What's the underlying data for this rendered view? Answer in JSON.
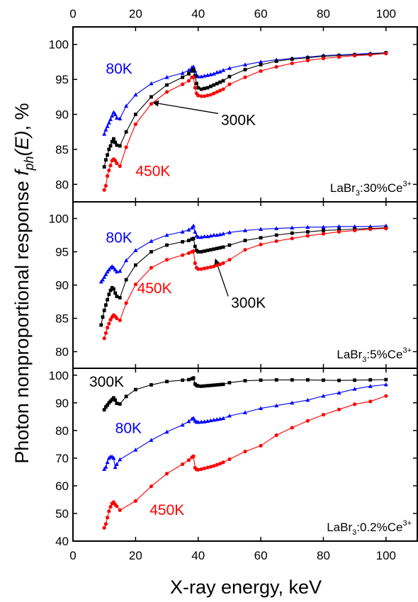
{
  "chart_data": {
    "type": "line",
    "xlabel": "X-ray energy, keV",
    "ylabel_parts": [
      "Photon nonproportional response ",
      "f",
      "ph",
      "(E)",
      ", %"
    ],
    "xlim": [
      0,
      110
    ],
    "x_ticks": [
      0,
      20,
      40,
      60,
      80,
      100
    ],
    "colors": {
      "80K": "#0000ff",
      "300K": "#000000",
      "450K": "#ff0000"
    },
    "panels": [
      {
        "id": "ce30",
        "sample_parts": [
          "LaBr",
          "3",
          ":30%Ce",
          "3+"
        ],
        "ylim": [
          77.5,
          102.5
        ],
        "y_ticks": [
          80,
          85,
          90,
          95,
          100
        ],
        "series": [
          {
            "name": "80K",
            "color": "#0000ff",
            "marker": "triangle",
            "label_anchor": [
              10.5,
              95.8
            ],
            "x": [
              10,
              10.5,
              11,
              11.5,
              12,
              12.5,
              13,
              13.5,
              14,
              15,
              17,
              20,
              25,
              30,
              35,
              37,
              38,
              38.5,
              39,
              39.5,
              40,
              41,
              42,
              43,
              44,
              45,
              46,
              47,
              48,
              50,
              55,
              60,
              65,
              70,
              75,
              80,
              85,
              90,
              95,
              100
            ],
            "y": [
              87.2,
              87.8,
              88.3,
              88.8,
              89.3,
              89.8,
              90.3,
              90,
              89.5,
              89.4,
              91.2,
              92.8,
              94.4,
              95.3,
              95.9,
              96.3,
              96.7,
              96.8,
              96.2,
              95.6,
              95.4,
              95.4,
              95.5,
              95.6,
              95.7,
              95.8,
              96,
              96.1,
              96.3,
              96.6,
              97.1,
              97.5,
              97.8,
              98,
              98.2,
              98.4,
              98.5,
              98.6,
              98.7,
              98.8
            ]
          },
          {
            "name": "300K",
            "color": "#000000",
            "marker": "square",
            "label_anchor": [
              47.3,
              88.5
            ],
            "arrow_to": [
              25.5,
              91.7
            ],
            "x": [
              10,
              10.5,
              11,
              11.5,
              12,
              12.5,
              13,
              13.5,
              14,
              15,
              17,
              20,
              25,
              30,
              35,
              37,
              38,
              38.5,
              39,
              39.5,
              40,
              41,
              42,
              43,
              44,
              45,
              46,
              47,
              48,
              50,
              55,
              60,
              65,
              70,
              75,
              80,
              85,
              90,
              95,
              100
            ],
            "y": [
              82.5,
              83.5,
              84.2,
              85,
              85.5,
              86.1,
              86.5,
              86,
              85.6,
              85.5,
              87.5,
              90,
              92.5,
              94.2,
              95.3,
              95.8,
              96.2,
              96.4,
              95.5,
              94.4,
              93.8,
              93.6,
              93.7,
              93.8,
              94,
              94.2,
              94.4,
              94.6,
              94.8,
              95.4,
              96.4,
              97.1,
              97.6,
              97.9,
              98.1,
              98.3,
              98.4,
              98.5,
              98.6,
              98.8
            ]
          },
          {
            "name": "450K",
            "color": "#ff0000",
            "marker": "circle",
            "label_anchor": [
              20,
              81.2
            ],
            "x": [
              10,
              10.5,
              11,
              11.5,
              12,
              12.5,
              13,
              13.5,
              14,
              15,
              17,
              20,
              25,
              30,
              35,
              37,
              38,
              38.5,
              39,
              39.5,
              40,
              41,
              42,
              43,
              44,
              45,
              46,
              47,
              48,
              50,
              55,
              60,
              65,
              70,
              75,
              80,
              85,
              90,
              95,
              100
            ],
            "y": [
              79.2,
              79.8,
              81.2,
              82,
              82.7,
              83.4,
              83.6,
              83.4,
              83,
              82.6,
              85.3,
              88.6,
              91.5,
              93.2,
              94.3,
              94.8,
              95.3,
              95.3,
              93.8,
              93,
              92.7,
              92.6,
              92.6,
              92.7,
              92.8,
              93,
              93.2,
              93.4,
              93.6,
              94.3,
              95.3,
              96.2,
              96.8,
              97.3,
              97.7,
              98,
              98.2,
              98.4,
              98.5,
              98.7
            ]
          }
        ]
      },
      {
        "id": "ce5",
        "sample_parts": [
          "LaBr",
          "3",
          ":5%Ce",
          "3+"
        ],
        "ylim": [
          77.5,
          102.5
        ],
        "y_ticks": [
          80,
          85,
          90,
          95,
          100
        ],
        "series": [
          {
            "name": "80K",
            "color": "#0000ff",
            "marker": "triangle",
            "label_anchor": [
              10.5,
              96.4
            ],
            "x": [
              9,
              9.5,
              10,
              10.5,
              11,
              11.5,
              12,
              12.5,
              13,
              13.5,
              14,
              15,
              17,
              20,
              25,
              30,
              35,
              37,
              38,
              38.5,
              39,
              39.5,
              40,
              41,
              42,
              43,
              44,
              45,
              46,
              47,
              48,
              50,
              55,
              60,
              65,
              70,
              75,
              80,
              85,
              90,
              95,
              100
            ],
            "y": [
              90.5,
              90.8,
              91.2,
              91.6,
              92,
              92.3,
              92.6,
              92.8,
              92.6,
              92.3,
              92,
              92.1,
              93.7,
              95.2,
              96.6,
              97.5,
              98,
              98.3,
              98.6,
              98.9,
              98,
              97.4,
              97.2,
              97.2,
              97.3,
              97.3,
              97.4,
              97.5,
              97.5,
              97.6,
              97.7,
              97.9,
              98.2,
              98.4,
              98.5,
              98.6,
              98.7,
              98.7,
              98.8,
              98.8,
              98.8,
              98.9
            ]
          },
          {
            "name": "300K",
            "color": "#000000",
            "marker": "square",
            "label_anchor": [
              50.5,
              86.6
            ],
            "arrow_to": [
              45.5,
              93.9
            ],
            "x": [
              9,
              9.5,
              10,
              10.5,
              11,
              11.5,
              12,
              12.5,
              13,
              13.5,
              14,
              15,
              17,
              20,
              25,
              30,
              35,
              37,
              38,
              38.5,
              39,
              39.5,
              40,
              41,
              42,
              43,
              44,
              45,
              46,
              47,
              48,
              50,
              55,
              60,
              65,
              70,
              75,
              80,
              85,
              90,
              95,
              100
            ],
            "y": [
              84,
              85.2,
              86.2,
              87,
              87.8,
              88.6,
              89.2,
              89.6,
              89.4,
              88.8,
              88.3,
              88.1,
              90.8,
              93,
              95,
              96,
              96.5,
              96.7,
              96.9,
              97,
              95.8,
              95.2,
              95,
              95,
              95.1,
              95.2,
              95.3,
              95.4,
              95.5,
              95.6,
              95.7,
              96,
              96.7,
              97.1,
              97.5,
              97.8,
              98,
              98.2,
              98.3,
              98.4,
              98.5,
              98.6
            ]
          },
          {
            "name": "450K",
            "color": "#ff0000",
            "marker": "circle",
            "label_anchor": [
              20.5,
              88.8
            ],
            "x": [
              10,
              10.5,
              11,
              11.5,
              12,
              12.5,
              13,
              13.5,
              14,
              15,
              17,
              20,
              25,
              30,
              35,
              37,
              38,
              38.5,
              39,
              39.5,
              40,
              41,
              42,
              43,
              44,
              45,
              46,
              47,
              48,
              50,
              55,
              60,
              65,
              70,
              75,
              80,
              85,
              90,
              95,
              100
            ],
            "y": [
              82,
              82.8,
              83.6,
              84.2,
              84.8,
              85.2,
              85.5,
              85.3,
              85,
              84.7,
              87.3,
              90.1,
              92.6,
              93.8,
              94.5,
              94.8,
              95,
              95.1,
              93.3,
              92.6,
              92.4,
              92.4,
              92.5,
              92.6,
              92.7,
              92.8,
              93,
              93.1,
              93.3,
              93.8,
              95.3,
              96.1,
              96.6,
              97,
              97.4,
              97.7,
              98,
              98.2,
              98.4,
              98.5
            ]
          }
        ]
      },
      {
        "id": "ce02",
        "sample_parts": [
          "LaBr",
          "3",
          ":0.2%Ce",
          "3+"
        ],
        "ylim": [
          40,
          102.5
        ],
        "y_ticks": [
          40,
          50,
          60,
          70,
          80,
          90,
          100
        ],
        "series": [
          {
            "name": "300K",
            "color": "#000000",
            "marker": "square",
            "label_anchor": [
              5.2,
              95.8
            ],
            "x": [
              10,
              10.5,
              11,
              11.5,
              12,
              12.5,
              13,
              13.5,
              14,
              15,
              17,
              20,
              25,
              30,
              35,
              37,
              38,
              38.5,
              39,
              39.5,
              40,
              41,
              42,
              43,
              44,
              45,
              46,
              47,
              48,
              50,
              55,
              60,
              65,
              70,
              75,
              80,
              85,
              90,
              95,
              100
            ],
            "y": [
              87.5,
              88.5,
              89.2,
              90,
              90.6,
              91.2,
              91.8,
              91,
              89.8,
              89.6,
              92.3,
              94.8,
              96.5,
              97.7,
              98.2,
              98.4,
              98.7,
              99,
              96.8,
              96.3,
              96.1,
              96,
              96.1,
              96.2,
              96.3,
              96.4,
              96.5,
              96.6,
              96.7,
              97.3,
              98,
              98.2,
              98.3,
              98.3,
              98.3,
              98.2,
              98.1,
              98.2,
              98.3,
              98.4
            ]
          },
          {
            "name": "80K",
            "color": "#0000ff",
            "marker": "triangle",
            "label_anchor": [
              13.5,
              79
            ],
            "x": [
              10,
              10.5,
              11,
              11.5,
              12,
              12.5,
              13,
              13.5,
              14,
              15,
              20,
              25,
              30,
              35,
              37,
              38,
              38.5,
              39,
              39.5,
              40,
              41,
              42,
              43,
              44,
              45,
              46,
              47,
              48,
              50,
              55,
              60,
              65,
              70,
              75,
              80,
              85,
              90,
              95,
              100
            ],
            "y": [
              66,
              66.8,
              68.5,
              70,
              70.5,
              70.5,
              70,
              66.7,
              67.8,
              69.5,
              73,
              76.5,
              79.5,
              82,
              83.3,
              84.2,
              84.5,
              83.5,
              83.1,
              83,
              83.1,
              83.2,
              83.4,
              83.6,
              83.8,
              84,
              84.2,
              84.4,
              85.3,
              86.5,
              88,
              89,
              90,
              91,
              92.5,
              93.6,
              95,
              96,
              96.6
            ]
          },
          {
            "name": "450K",
            "color": "#ff0000",
            "marker": "circle",
            "label_anchor": [
              24.5,
              49.5
            ],
            "x": [
              10,
              10.5,
              11,
              11.5,
              12,
              12.5,
              13,
              13.5,
              14,
              15,
              20,
              25,
              30,
              35,
              37,
              38,
              38.5,
              39,
              39.5,
              40,
              41,
              42,
              43,
              44,
              45,
              46,
              47,
              48,
              50,
              55,
              60,
              65,
              70,
              75,
              80,
              85,
              90,
              95,
              100
            ],
            "y": [
              44.8,
              46.2,
              48.5,
              50.8,
              52.4,
              53.6,
              54.1,
              53.2,
              52.6,
              51.2,
              54.5,
              59.8,
              64.4,
              67.8,
              69.3,
              70.3,
              70.7,
              66.5,
              65.9,
              65.8,
              66,
              66.3,
              66.6,
              66.9,
              67.2,
              67.6,
              68,
              68.5,
              69.6,
              72.4,
              74.5,
              78.3,
              81,
              83.5,
              85.7,
              87.6,
              89.5,
              90.5,
              92.5
            ]
          }
        ]
      }
    ]
  }
}
